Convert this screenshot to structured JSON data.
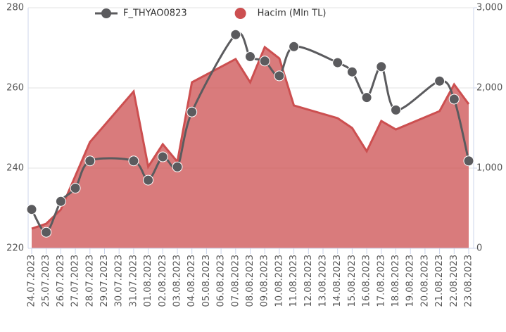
{
  "chart_data": {
    "type": "line-area",
    "categories": [
      "24.07.2023",
      "25.07.2023",
      "26.07.2023",
      "27.07.2023",
      "28.07.2023",
      "29.07.2023",
      "30.07.2023",
      "31.07.2023",
      "01.08.2023",
      "02.08.2023",
      "03.08.2023",
      "04.08.2023",
      "05.08.2023",
      "06.08.2023",
      "07.08.2023",
      "08.08.2023",
      "09.08.2023",
      "10.08.2023",
      "11.08.2023",
      "12.08.2023",
      "13.08.2023",
      "14.08.2023",
      "15.08.2023",
      "16.08.2023",
      "17.08.2023",
      "18.08.2023",
      "19.08.2023",
      "20.08.2023",
      "21.08.2023",
      "22.08.2023",
      "23.08.2023"
    ],
    "ylim": [
      220,
      280
    ],
    "yticks": [
      220,
      240,
      260,
      280
    ],
    "y2lim": [
      0,
      3000
    ],
    "y2ticks": [
      0,
      {
        "value": 1000,
        "label": "1,000"
      },
      {
        "value": 2000,
        "label": "2,000"
      },
      {
        "value": 3000,
        "label": "3,000"
      }
    ],
    "grid": true,
    "legend": "top",
    "series": [
      {
        "name": "F_THYAO0823",
        "color": "#5b5b5e",
        "kind": "line",
        "x": [
          "24.07.2023",
          "25.07.2023",
          "26.07.2023",
          "27.07.2023",
          "28.07.2023",
          "31.07.2023",
          "01.08.2023",
          "02.08.2023",
          "03.08.2023",
          "04.08.2023",
          "07.08.2023",
          "08.08.2023",
          "09.08.2023",
          "10.08.2023",
          "11.08.2023",
          "14.08.2023",
          "15.08.2023",
          "16.08.2023",
          "17.08.2023",
          "18.08.2023",
          "21.08.2023",
          "22.08.2023",
          "23.08.2023"
        ],
        "values": [
          229.7,
          224,
          231.7,
          235,
          241.8,
          241.8,
          237,
          242.8,
          240.3,
          254,
          273.3,
          267.8,
          266.7,
          263,
          270.3,
          266.3,
          264,
          257.6,
          265.3,
          254.5,
          261.7,
          257.2,
          241.8
        ]
      },
      {
        "name": "Hacim (Mln TL)",
        "color": "#cc4f50",
        "kind": "area",
        "axis": "y2",
        "x": [
          "24.07.2023",
          "25.07.2023",
          "26.07.2023",
          "27.07.2023",
          "28.07.2023",
          "31.07.2023",
          "01.08.2023",
          "02.08.2023",
          "03.08.2023",
          "04.08.2023",
          "07.08.2023",
          "08.08.2023",
          "09.08.2023",
          "10.08.2023",
          "11.08.2023",
          "14.08.2023",
          "15.08.2023",
          "16.08.2023",
          "17.08.2023",
          "18.08.2023",
          "21.08.2023",
          "22.08.2023",
          "23.08.2023"
        ],
        "values": [
          245,
          307,
          482,
          904,
          1325,
          1956,
          1018,
          1298,
          1079,
          2070,
          2360,
          2070,
          2509,
          2368,
          1781,
          1623,
          1500,
          1210,
          1588,
          1482,
          1711,
          2044,
          1798
        ]
      }
    ]
  }
}
